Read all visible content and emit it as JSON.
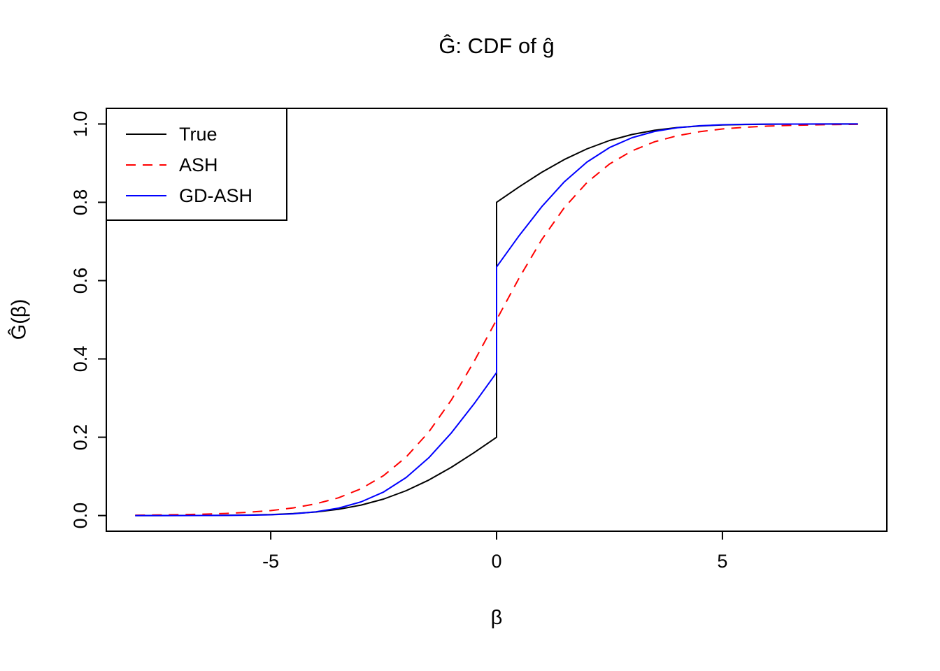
{
  "figure": {
    "background": "#ffffff",
    "axis_color": "#000000"
  },
  "chart_data": {
    "type": "line",
    "title": "Ĝ: CDF of ĝ",
    "xlabel": "β",
    "ylabel": "Ĝ(β)",
    "xlim": [
      -8.64,
      8.64
    ],
    "ylim": [
      -0.04,
      1.04
    ],
    "xticks": [
      -5,
      0,
      5
    ],
    "xtick_labels": [
      "-5",
      "0",
      "5"
    ],
    "yticks": [
      0.0,
      0.2,
      0.4,
      0.6,
      0.8,
      1.0
    ],
    "ytick_labels": [
      "0.0",
      "0.2",
      "0.4",
      "0.6",
      "0.8",
      "1.0"
    ],
    "grid": false,
    "legend_position": "top-left",
    "series": [
      {
        "name": "True",
        "color": "#000000",
        "dash": "solid",
        "points": [
          [
            -8,
            0.0
          ],
          [
            -7.5,
            0.0
          ],
          [
            -7,
            0.0001
          ],
          [
            -6.5,
            0.0002
          ],
          [
            -6,
            0.0005
          ],
          [
            -5.5,
            0.0012
          ],
          [
            -5,
            0.0025
          ],
          [
            -4.5,
            0.0049
          ],
          [
            -4,
            0.0091
          ],
          [
            -3.5,
            0.016
          ],
          [
            -3,
            0.0267
          ],
          [
            -2.5,
            0.0422
          ],
          [
            -2,
            0.0635
          ],
          [
            -1.5,
            0.0906
          ],
          [
            -1,
            0.1234
          ],
          [
            -0.5,
            0.1605
          ],
          [
            0,
            0.2
          ],
          [
            0,
            0.8
          ],
          [
            0.5,
            0.8395
          ],
          [
            1,
            0.8766
          ],
          [
            1.5,
            0.9094
          ],
          [
            2,
            0.9365
          ],
          [
            2.5,
            0.9578
          ],
          [
            3,
            0.9733
          ],
          [
            3.5,
            0.984
          ],
          [
            4,
            0.9909
          ],
          [
            4.5,
            0.9951
          ],
          [
            5,
            0.9975
          ],
          [
            5.5,
            0.9988
          ],
          [
            6,
            0.9995
          ],
          [
            6.5,
            0.9998
          ],
          [
            7,
            0.9999
          ],
          [
            7.5,
            1.0
          ],
          [
            8,
            1.0
          ]
        ]
      },
      {
        "name": "ASH",
        "color": "#ff0000",
        "dash": "dashed",
        "points": [
          [
            -8,
            0.0009
          ],
          [
            -7.5,
            0.0015
          ],
          [
            -7,
            0.0023
          ],
          [
            -6.5,
            0.0035
          ],
          [
            -6,
            0.0054
          ],
          [
            -5.5,
            0.0083
          ],
          [
            -5,
            0.0127
          ],
          [
            -4.5,
            0.0196
          ],
          [
            -4,
            0.0299
          ],
          [
            -3.5,
            0.0454
          ],
          [
            -3,
            0.0686
          ],
          [
            -2.5,
            0.1021
          ],
          [
            -2,
            0.1495
          ],
          [
            -1.5,
            0.2134
          ],
          [
            -1,
            0.2953
          ],
          [
            -0.5,
            0.393
          ],
          [
            0,
            0.5
          ],
          [
            0.5,
            0.607
          ],
          [
            1,
            0.7047
          ],
          [
            1.5,
            0.7866
          ],
          [
            2,
            0.8505
          ],
          [
            2.5,
            0.8979
          ],
          [
            3,
            0.9314
          ],
          [
            3.5,
            0.9546
          ],
          [
            4,
            0.9701
          ],
          [
            4.5,
            0.9804
          ],
          [
            5,
            0.9873
          ],
          [
            5.5,
            0.9917
          ],
          [
            6,
            0.9946
          ],
          [
            6.5,
            0.9965
          ],
          [
            7,
            0.9977
          ],
          [
            7.5,
            0.9985
          ],
          [
            8,
            0.9991
          ]
        ]
      },
      {
        "name": "GD-ASH",
        "color": "#0000ff",
        "dash": "solid",
        "points": [
          [
            -8,
            0.0
          ],
          [
            -7.5,
            0.0
          ],
          [
            -7,
            0.0
          ],
          [
            -6.5,
            0.0001
          ],
          [
            -6,
            0.0003
          ],
          [
            -5.5,
            0.0008
          ],
          [
            -5,
            0.002
          ],
          [
            -4.5,
            0.0045
          ],
          [
            -4,
            0.0096
          ],
          [
            -3.5,
            0.0189
          ],
          [
            -3,
            0.0349
          ],
          [
            -2.5,
            0.0602
          ],
          [
            -2,
            0.0973
          ],
          [
            -1.5,
            0.1477
          ],
          [
            -1,
            0.2112
          ],
          [
            -0.5,
            0.2851
          ],
          [
            0,
            0.365
          ],
          [
            0,
            0.635
          ],
          [
            0.5,
            0.7149
          ],
          [
            1,
            0.7888
          ],
          [
            1.5,
            0.8523
          ],
          [
            2,
            0.9027
          ],
          [
            2.5,
            0.9398
          ],
          [
            3,
            0.9651
          ],
          [
            3.5,
            0.9811
          ],
          [
            4,
            0.9904
          ],
          [
            4.5,
            0.9955
          ],
          [
            5,
            0.998
          ],
          [
            5.5,
            0.9992
          ],
          [
            6,
            0.9997
          ],
          [
            6.5,
            0.9999
          ],
          [
            7,
            1.0
          ],
          [
            7.5,
            1.0
          ],
          [
            8,
            1.0
          ]
        ]
      }
    ]
  }
}
